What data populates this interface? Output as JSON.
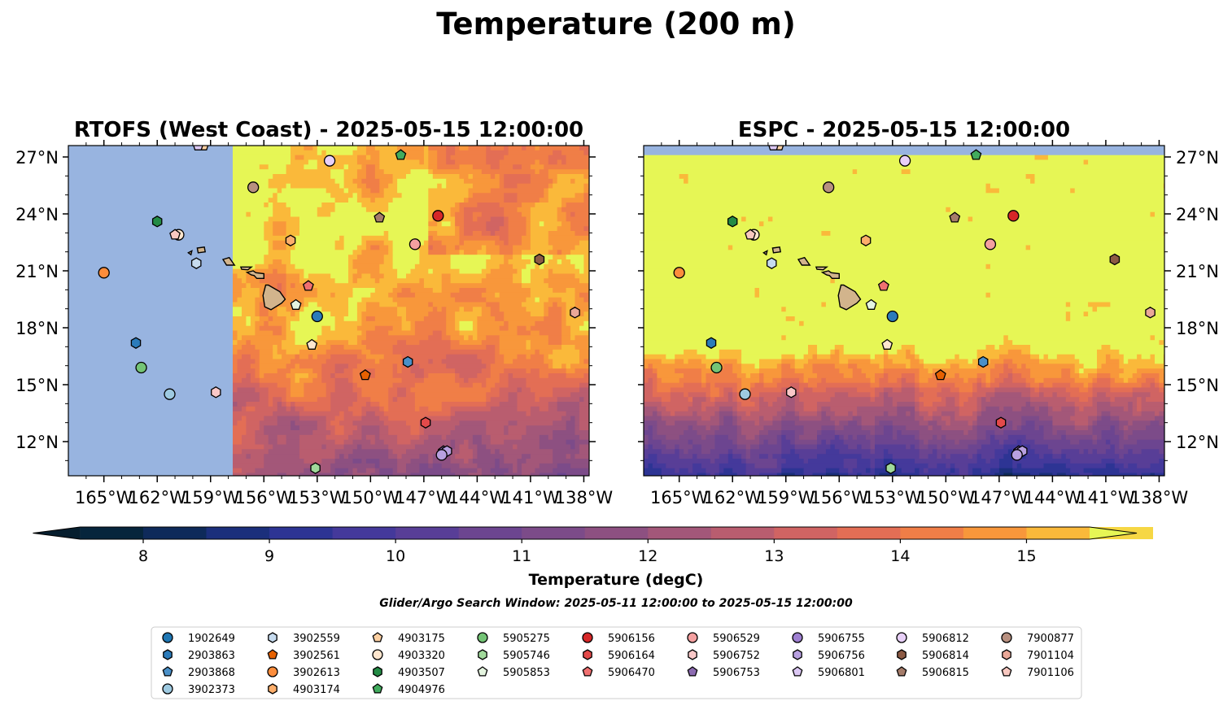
{
  "figure": {
    "title": "Temperature (200 m)",
    "subtitle": "Glider/Argo Search Window: 2025-05-11 12:00:00 to 2025-05-15 12:00:00"
  },
  "colors": {
    "land": "#d2b48c",
    "nodata": "#98b4e0",
    "warm_max": "#e6f655"
  },
  "chart_data": [
    {
      "type": "heatmap",
      "title": "RTOFS (West Coast) - 2025-05-15 12:00:00",
      "xlim": [
        -167,
        -137.7
      ],
      "ylim": [
        10.2,
        27.6
      ],
      "x_ticks": [
        "165°W",
        "162°W",
        "159°W",
        "156°W",
        "153°W",
        "150°W",
        "147°W",
        "144°W",
        "141°W",
        "138°W"
      ],
      "y_ticks": [
        "27°N",
        "24°N",
        "21°N",
        "18°N",
        "15°N",
        "12°N"
      ],
      "y_tick_side": "left",
      "data_extent_lon": [
        -157.8,
        -137.7
      ],
      "y_ticks_values": [
        27,
        24,
        21,
        18,
        15,
        12
      ],
      "x_ticks_values": [
        -165,
        -162,
        -159,
        -156,
        -153,
        -150,
        -147,
        -144,
        -141,
        -138
      ],
      "fields": {
        "base_temp": 15.3,
        "gradient": "cooler toward south-east"
      }
    },
    {
      "type": "heatmap",
      "title": "ESPC - 2025-05-15 12:00:00",
      "xlim": [
        -167,
        -137.7
      ],
      "ylim": [
        10.2,
        27.6
      ],
      "x_ticks": [
        "165°W",
        "162°W",
        "159°W",
        "156°W",
        "153°W",
        "150°W",
        "147°W",
        "144°W",
        "141°W",
        "138°W"
      ],
      "y_ticks": [
        "27°N",
        "24°N",
        "21°N",
        "18°N",
        "15°N",
        "12°N"
      ],
      "y_tick_side": "right",
      "data_extent_lat_max": 27.1,
      "y_ticks_values": [
        27,
        24,
        21,
        18,
        15,
        12
      ],
      "x_ticks_values": [
        -165,
        -162,
        -159,
        -156,
        -153,
        -150,
        -147,
        -144,
        -141,
        -138
      ],
      "fields": {
        "base_temp": 15.6,
        "gradient": "sharp cooling south of 16°N"
      }
    }
  ],
  "colorbar": {
    "label": "Temperature (degC)",
    "min": 7.5,
    "max": 15.5,
    "step": 0.5,
    "ticks": [
      "8",
      "9",
      "10",
      "11",
      "12",
      "13",
      "14",
      "15"
    ],
    "tick_values": [
      8,
      9,
      10,
      11,
      12,
      13,
      14,
      15
    ],
    "colors": [
      "#06253c",
      "#0e2a5a",
      "#1b2f7c",
      "#2d3494",
      "#44399b",
      "#583e97",
      "#6c4590",
      "#7c4b89",
      "#8d5081",
      "#a35779",
      "#b95d6f",
      "#d06463",
      "#e36e55",
      "#f07e47",
      "#f8973b",
      "#fab93a",
      "#f6d744"
    ],
    "extend_low": "#061e2e",
    "extend_high": "#e6f655"
  },
  "legend": {
    "columns": 9,
    "entries": [
      {
        "id": "1902649",
        "lon": -165.0,
        "lat": 30.5,
        "marker": "circle",
        "color": "#1f77b4",
        "visible": false
      },
      {
        "id": "2903863",
        "lon": -163.2,
        "lat": 17.2,
        "marker": "hexagon",
        "color": "#2b7bba"
      },
      {
        "id": "2903868",
        "lon": -160.0,
        "lat": 29.5,
        "marker": "pentagon",
        "color": "#4a90c8",
        "visible": false
      },
      {
        "id": "3902373",
        "lon": -161.3,
        "lat": 14.5,
        "marker": "circle",
        "color": "#9ecae1"
      },
      {
        "id": "3902559",
        "lon": -159.8,
        "lat": 21.4,
        "marker": "hexagon",
        "color": "#c6dbef"
      },
      {
        "id": "3902561",
        "lon": -150.3,
        "lat": 15.5,
        "marker": "pentagon",
        "color": "#e66101"
      },
      {
        "id": "3902613",
        "lon": -165.0,
        "lat": 20.9,
        "marker": "circle",
        "color": "#fd8d3c"
      },
      {
        "id": "4903174",
        "lon": -154.5,
        "lat": 22.6,
        "marker": "hexagon",
        "color": "#fdae6b"
      },
      {
        "id": "4903175",
        "lon": -159.4,
        "lat": 27.6,
        "marker": "pentagon",
        "color": "#fdd0a2"
      },
      {
        "id": "4903320",
        "lon": -160.8,
        "lat": 22.9,
        "marker": "circle",
        "color": "#fee6ce"
      },
      {
        "id": "4903507",
        "lon": -162.0,
        "lat": 23.6,
        "marker": "hexagon",
        "color": "#238b45"
      },
      {
        "id": "4904976",
        "lon": -148.3,
        "lat": 27.1,
        "marker": "pentagon",
        "color": "#41ab5d"
      },
      {
        "id": "5905275",
        "lon": -162.9,
        "lat": 15.9,
        "marker": "circle",
        "color": "#74c476"
      },
      {
        "id": "5905746",
        "lon": -153.1,
        "lat": 10.6,
        "marker": "hexagon",
        "color": "#a1d99b"
      },
      {
        "id": "5905853",
        "lon": -154.2,
        "lat": 19.2,
        "marker": "pentagon",
        "color": "#e5f5e0"
      },
      {
        "id": "5906156",
        "lon": -146.2,
        "lat": 23.9,
        "marker": "circle",
        "color": "#d62728"
      },
      {
        "id": "5906164",
        "lon": -146.9,
        "lat": 13.0,
        "marker": "hexagon",
        "color": "#e34a4a"
      },
      {
        "id": "5906470",
        "lon": -153.5,
        "lat": 20.2,
        "marker": "pentagon",
        "color": "#f07070"
      },
      {
        "id": "5906529",
        "lon": -147.5,
        "lat": 22.4,
        "marker": "circle",
        "color": "#f4a0a0"
      },
      {
        "id": "5906752",
        "lon": -158.7,
        "lat": 14.6,
        "marker": "hexagon",
        "color": "#f9c8c8"
      },
      {
        "id": "5906753",
        "lon": -145.9,
        "lat": 11.5,
        "marker": "pentagon",
        "color": "#8c6bb1"
      },
      {
        "id": "5906755",
        "lon": -150.0,
        "lat": 30.0,
        "marker": "circle",
        "color": "#9e7fd1",
        "visible": false
      },
      {
        "id": "5906756",
        "lon": -145.7,
        "lat": 11.5,
        "marker": "hexagon",
        "color": "#b8a0e0"
      },
      {
        "id": "5906801",
        "lon": -159.7,
        "lat": 27.6,
        "marker": "pentagon",
        "color": "#dcc8f4"
      },
      {
        "id": "5906812",
        "lon": -152.3,
        "lat": 26.8,
        "marker": "circle",
        "color": "#e8d0f8"
      },
      {
        "id": "5906814",
        "lon": -140.5,
        "lat": 21.6,
        "marker": "hexagon",
        "color": "#8c5a44"
      },
      {
        "id": "5906815",
        "lon": -149.5,
        "lat": 23.8,
        "marker": "pentagon",
        "color": "#a57c6a"
      },
      {
        "id": "7900877",
        "lon": -156.6,
        "lat": 25.4,
        "marker": "circle",
        "color": "#b89080"
      },
      {
        "id": "7901104",
        "lon": -138.5,
        "lat": 18.8,
        "marker": "hexagon",
        "color": "#eaa898"
      },
      {
        "id": "7901106",
        "lon": -161.0,
        "lat": 22.9,
        "marker": "pentagon",
        "color": "#f8c8c0"
      }
    ],
    "extra_markers": [
      {
        "lon": -153.3,
        "lat": 17.1,
        "marker": "pentagon",
        "color": "#fee6ce"
      },
      {
        "lon": -153.0,
        "lat": 18.6,
        "marker": "circle",
        "color": "#2b7bba"
      },
      {
        "lon": -146.0,
        "lat": 11.3,
        "marker": "circle",
        "color": "#b8a0e0"
      },
      {
        "lon": -147.9,
        "lat": 16.2,
        "marker": "hexagon",
        "color": "#4a90c8"
      }
    ]
  }
}
